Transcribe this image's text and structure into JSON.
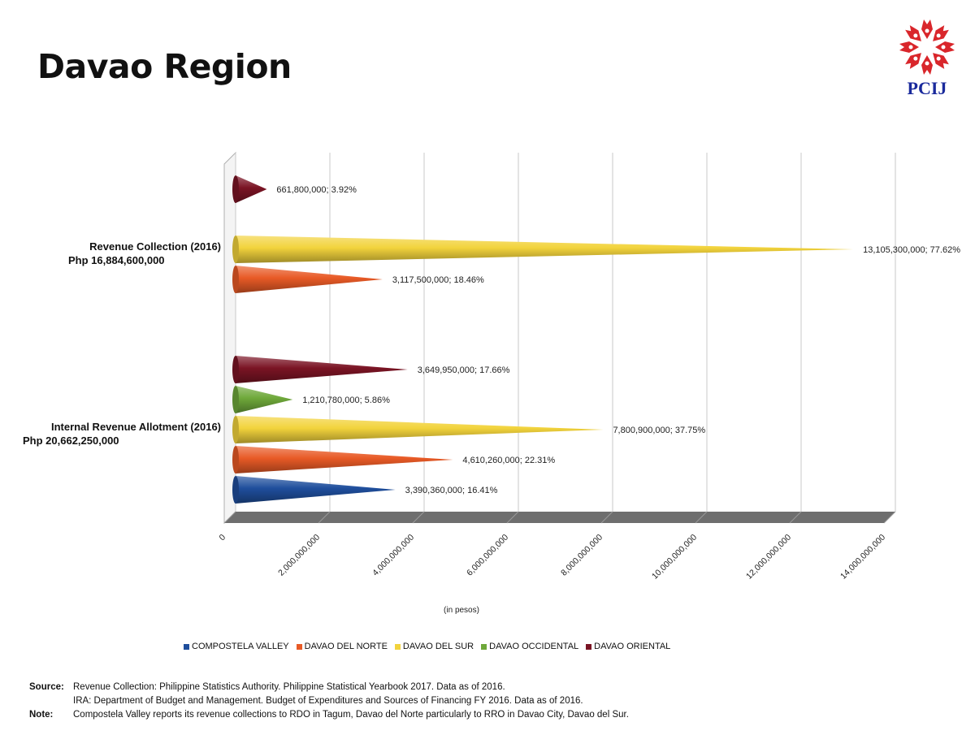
{
  "page": {
    "title": "Davao Region",
    "logo_text": "PCIJ"
  },
  "colors": {
    "COMPOSTELA VALLEY": "#1f4e9c",
    "DAVAO DEL NORTE": "#e85a26",
    "DAVAO DEL SUR": "#f2d33c",
    "DAVAO OCCIDENTAL": "#6ea83a",
    "DAVAO ORIENTAL": "#7a1424"
  },
  "chart_data": {
    "type": "bar",
    "orientation": "horizontal",
    "style": "3d-cone",
    "xlabel": "(in pesos)",
    "xlim": [
      0,
      14000000000
    ],
    "x_ticks": [
      "0",
      "2,000,000,000",
      "4,000,000,000",
      "6,000,000,000",
      "8,000,000,000",
      "10,000,000,000",
      "12,000,000,000",
      "14,000,000,000"
    ],
    "grid": true,
    "legend_position": "bottom",
    "legend": [
      "COMPOSTELA VALLEY",
      "DAVAO DEL NORTE",
      "DAVAO DEL SUR",
      "DAVAO OCCIDENTAL",
      "DAVAO ORIENTAL"
    ],
    "groups": [
      {
        "label_line1": "Revenue Collection (2016)",
        "label_line2": "Php 16,884,600,000",
        "bars": [
          {
            "series": "DAVAO ORIENTAL",
            "value": 661800000,
            "label": "661,800,000; 3.92%"
          },
          {
            "series": "DAVAO DEL SUR",
            "value": 13105300000,
            "label": "13,105,300,000; 77.62%"
          },
          {
            "series": "DAVAO DEL NORTE",
            "value": 3117500000,
            "label": "3,117,500,000; 18.46%"
          }
        ]
      },
      {
        "label_line1": "Internal Revenue Allotment (2016)",
        "label_line2": "Php 20,662,250,000",
        "bars": [
          {
            "series": "DAVAO ORIENTAL",
            "value": 3649950000,
            "label": "3,649,950,000; 17.66%"
          },
          {
            "series": "DAVAO OCCIDENTAL",
            "value": 1210780000,
            "label": "1,210,780,000; 5.86%"
          },
          {
            "series": "DAVAO DEL SUR",
            "value": 7800900000,
            "label": "7,800,900,000; 37.75%"
          },
          {
            "series": "DAVAO DEL NORTE",
            "value": 4610260000,
            "label": "4,610,260,000; 22.31%"
          },
          {
            "series": "COMPOSTELA VALLEY",
            "value": 3390360000,
            "label": "3,390,360,000; 16.41%"
          }
        ]
      }
    ]
  },
  "footer": {
    "source_key": "Source:",
    "source_line1": "Revenue Collection: Philippine Statistics Authority. Philippine Statistical Yearbook 2017.  Data as of 2016.",
    "source_line2": "IRA: Department of Budget and Management. Budget of Expenditures and Sources of Financing FY 2016. Data as of 2016.",
    "note_key": "Note:",
    "note_text": "Compostela Valley reports its revenue collections to RDO in Tagum, Davao del Norte particularly to RRO in Davao City, Davao del Sur."
  }
}
